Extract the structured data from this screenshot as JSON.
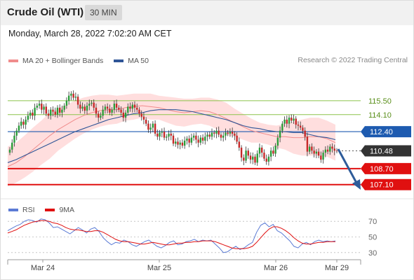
{
  "header": {
    "title": "Crude Oil (WTI)",
    "timeframe": "30 MIN"
  },
  "datetime": "Monday, March 28, 2022 7:02:20 AM CET",
  "legend": {
    "bb_label": "MA 20 + Bollinger Bands",
    "ma50_label": "MA 50"
  },
  "copyright": "Research © 2022 Trading Central",
  "rsi_legend": {
    "rsi_label": "RSI",
    "ma_label": "9MA"
  },
  "colors": {
    "candle_up": "#2a9d3a",
    "candle_down": "#c62828",
    "ma20": "#f08c8c",
    "ma50": "#2f5597",
    "band": "#ffd8d8",
    "resistance": "#8bc34a",
    "support": "#e01010",
    "last_price": "#333333",
    "ma50_tag": "#1e5bb0",
    "rsi": "#5b7bd5",
    "rsi_ma": "#e01010",
    "arrow": "#2e5c9a"
  },
  "chart_data": {
    "type": "candlestick",
    "y_range": [
      105.75,
      118.5
    ],
    "x_ticks": [
      "Mar 24",
      "Mar 25",
      "Mar 26",
      "Mar 29"
    ],
    "levels": [
      {
        "name": "resistance-2",
        "value": 115.5,
        "label": "115.50",
        "style": "resistance"
      },
      {
        "name": "resistance-1",
        "value": 114.1,
        "label": "114.10",
        "style": "resistance"
      },
      {
        "name": "ma50-level",
        "value": 112.4,
        "label": "112.40",
        "style": "ma50"
      },
      {
        "name": "last-price",
        "value": 110.48,
        "label": "110.48",
        "style": "last"
      },
      {
        "name": "support-1",
        "value": 108.7,
        "label": "108.70",
        "style": "support"
      },
      {
        "name": "support-2",
        "value": 107.1,
        "label": "107.10",
        "style": "support"
      }
    ],
    "closes": [
      110.6,
      111.3,
      112.0,
      112.5,
      113.0,
      113.4,
      113.1,
      113.6,
      114.0,
      114.3,
      114.0,
      114.8,
      115.0,
      115.2,
      114.6,
      114.9,
      114.2,
      114.0,
      114.6,
      114.4,
      114.1,
      114.8,
      114.3,
      114.6,
      115.0,
      115.5,
      116.0,
      116.2,
      115.8,
      115.9,
      115.1,
      114.7,
      114.9,
      114.5,
      115.0,
      115.2,
      115.3,
      114.8,
      114.2,
      113.8,
      114.0,
      114.6,
      114.9,
      114.7,
      114.3,
      114.6,
      115.2,
      114.8,
      114.6,
      114.3,
      113.8,
      114.3,
      114.9,
      114.7,
      115.1,
      114.8,
      114.6,
      114.2,
      113.9,
      113.6,
      113.2,
      112.6,
      112.8,
      113.2,
      112.2,
      111.9,
      112.3,
      112.4,
      111.8,
      111.9,
      112.2,
      112.0,
      111.2,
      111.4,
      111.1,
      111.3,
      111.0,
      111.5,
      111.7,
      111.3,
      111.8,
      112.0,
      111.6,
      111.3,
      111.8,
      111.5,
      111.9,
      112.1,
      111.9,
      112.3,
      112.2,
      112.5,
      112.1,
      111.8,
      112.0,
      112.3,
      112.2,
      112.4,
      112.2,
      112.0,
      111.4,
      110.8,
      109.8,
      109.5,
      110.5,
      110.0,
      109.6,
      109.9,
      109.3,
      110.2,
      110.8,
      110.3,
      109.7,
      109.4,
      109.9,
      110.5,
      110.2,
      111.0,
      111.8,
      112.5,
      113.2,
      113.6,
      113.2,
      113.8,
      113.5,
      113.7,
      113.1,
      113.0,
      112.8,
      112.5,
      111.9,
      110.4,
      110.9,
      110.5,
      110.2,
      110.4,
      110.0,
      109.6,
      110.3,
      110.6,
      110.4,
      110.9,
      110.7,
      110.5,
      110.48
    ],
    "ma50": [
      109.3,
      109.6,
      110.0,
      110.4,
      110.8,
      111.2,
      111.6,
      112.0,
      112.4,
      112.7,
      113.0,
      113.3,
      113.6,
      113.8,
      114.0,
      114.2,
      114.3,
      114.5,
      114.6,
      114.6,
      114.6,
      114.5,
      114.4,
      114.2,
      114.0,
      113.8,
      113.6,
      113.3,
      113.0,
      112.8,
      112.7,
      112.5,
      112.4,
      112.4,
      112.3,
      112.3,
      112.1,
      111.9,
      111.8,
      111.6
    ],
    "ma20": [
      108.9,
      109.3,
      109.9,
      110.6,
      111.3,
      112.0,
      112.6,
      113.1,
      113.6,
      114.0,
      114.3,
      114.5,
      114.6,
      114.6,
      114.8,
      114.9,
      115.0,
      114.9,
      114.8,
      114.6,
      114.4,
      114.3,
      114.4,
      114.5,
      114.4,
      114.1,
      113.7,
      113.3,
      112.9,
      112.5,
      112.3,
      112.1,
      111.9,
      111.9,
      111.8,
      111.8,
      111.9,
      111.9,
      111.7,
      111.3
    ],
    "band_width": [
      2.0,
      2.0,
      2.1,
      2.2,
      2.2,
      2.3,
      2.1,
      2.0,
      1.9,
      1.8,
      1.7,
      1.6,
      1.5,
      1.4,
      1.3,
      1.3,
      1.2,
      1.3,
      1.2,
      1.3,
      1.4,
      1.4,
      1.3,
      1.3,
      1.4,
      1.5,
      1.6,
      1.4,
      1.3,
      1.2,
      1.0,
      1.0,
      1.1,
      1.3,
      1.6,
      1.8,
      1.9,
      1.9,
      1.8,
      1.8
    ],
    "rsi": {
      "y_ticks": [
        30,
        50,
        70
      ],
      "y_range": [
        20,
        80
      ],
      "rsi": [
        58,
        61,
        64,
        66,
        70,
        72,
        71,
        69,
        73,
        72,
        68,
        62,
        63,
        60,
        57,
        54,
        58,
        62,
        59,
        55,
        60,
        62,
        57,
        49,
        44,
        40,
        43,
        42,
        46,
        44,
        40,
        38,
        41,
        44,
        46,
        42,
        38,
        36,
        39,
        43,
        45,
        40,
        41,
        44,
        45,
        47,
        44,
        46,
        45,
        46,
        41,
        36,
        30,
        31,
        35,
        38,
        34,
        36,
        40,
        43,
        56,
        65,
        68,
        63,
        66,
        58,
        55,
        50,
        45,
        38,
        36,
        41,
        43,
        40,
        44,
        46,
        44,
        45,
        44,
        45
      ],
      "ma": [
        55,
        57,
        59,
        62,
        65,
        67,
        69,
        70,
        71,
        71,
        70,
        68,
        67,
        65,
        62,
        60,
        59,
        59,
        58,
        57,
        57,
        58,
        58,
        56,
        53,
        50,
        47,
        45,
        44,
        44,
        43,
        42,
        41,
        41,
        42,
        43,
        42,
        41,
        40,
        40,
        41,
        42,
        42,
        43,
        43,
        44,
        44,
        45,
        45,
        45,
        44,
        42,
        40,
        38,
        36,
        35,
        35,
        35,
        36,
        38,
        43,
        49,
        55,
        60,
        63,
        63,
        61,
        58,
        54,
        49,
        45,
        42,
        41,
        41,
        42,
        43,
        43,
        44,
        44,
        44
      ]
    }
  }
}
